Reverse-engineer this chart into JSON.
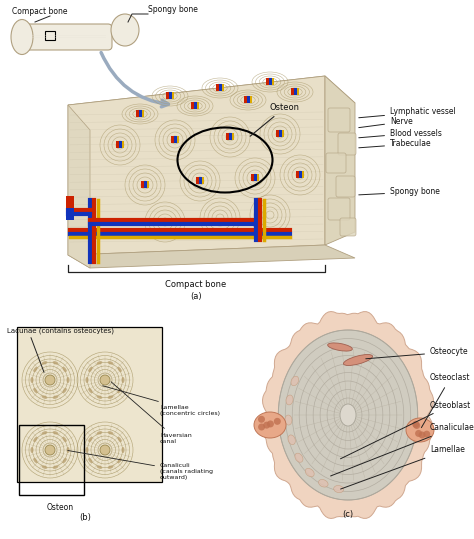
{
  "bg_color": "#ffffff",
  "bone_light": "#f0ece0",
  "bone_tan": "#e0d8c0",
  "bone_mid": "#d8ceb0",
  "bone_dark": "#c8bc98",
  "bone_outline": "#b0a080",
  "spongy_color": "#ddd5bb",
  "red_vessel": "#cc2200",
  "blue_vessel": "#1133bb",
  "yellow_vessel": "#ddaa00",
  "green_vessel": "#44aa44",
  "haversian_color": "#c8b888",
  "osteon_line": "#a89868",
  "text_color": "#111111",
  "anno_color": "#222222",
  "label_a": "(a)",
  "label_b": "(b)",
  "label_c": "(c)",
  "cell_pink": "#e8a888",
  "cell_outline": "#c07858",
  "matrix_gray": "#ccc8bc",
  "matrix_line": "#aaa89a",
  "outer_pink": "#e8c8b0"
}
